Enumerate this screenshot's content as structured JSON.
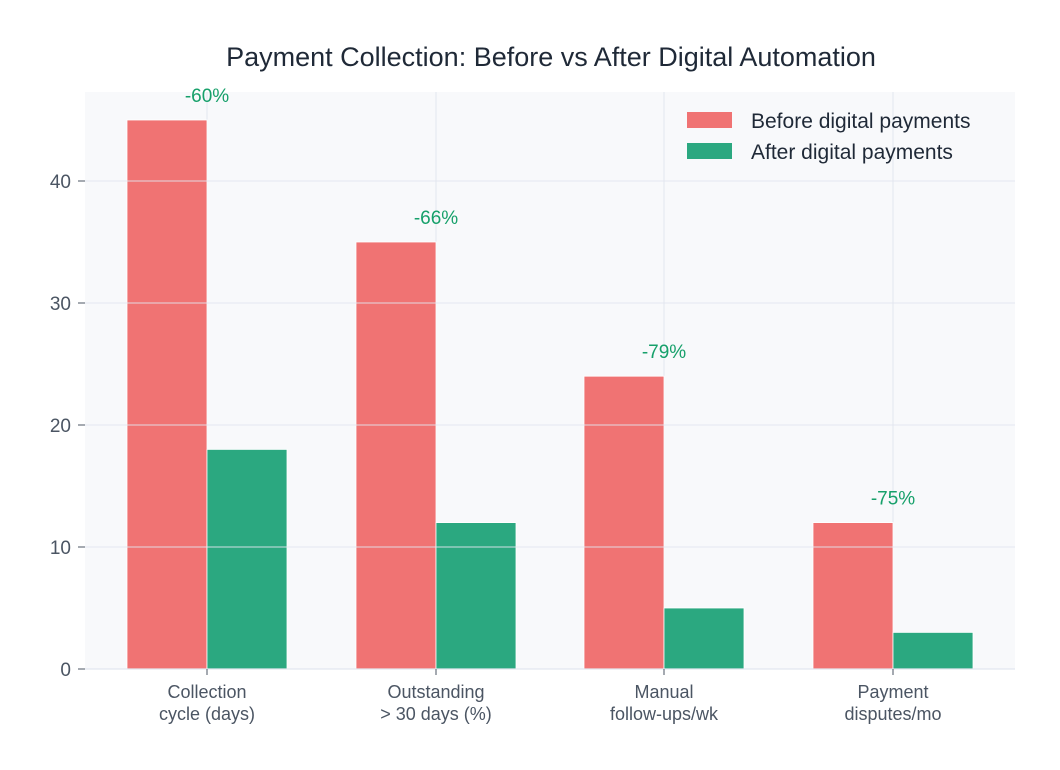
{
  "chart_data": {
    "type": "bar",
    "title": "Payment Collection: Before vs After Digital Automation",
    "xlabel": "",
    "ylabel": "",
    "categories": [
      [
        "Collection",
        "cycle (days)"
      ],
      [
        "Outstanding",
        "> 30 days (%)"
      ],
      [
        "Manual",
        "follow-ups/wk"
      ],
      [
        "Payment",
        "disputes/mo"
      ]
    ],
    "series": [
      {
        "name": "Before digital payments",
        "color": "#f07373",
        "values": [
          45,
          35,
          24,
          12
        ]
      },
      {
        "name": "After digital payments",
        "color": "#2ba880",
        "values": [
          18,
          12,
          5,
          3
        ]
      }
    ],
    "annotations": [
      "-60%",
      "-66%",
      "-79%",
      "-75%"
    ],
    "annotation_color": "#16a06a",
    "yticks": [
      0,
      10,
      20,
      30,
      40
    ],
    "ylim": [
      0,
      47.3
    ],
    "grid": true,
    "legend_position": "upper right",
    "plot_bg": "#f8f9fb",
    "grid_color": "#e2e6ef"
  }
}
